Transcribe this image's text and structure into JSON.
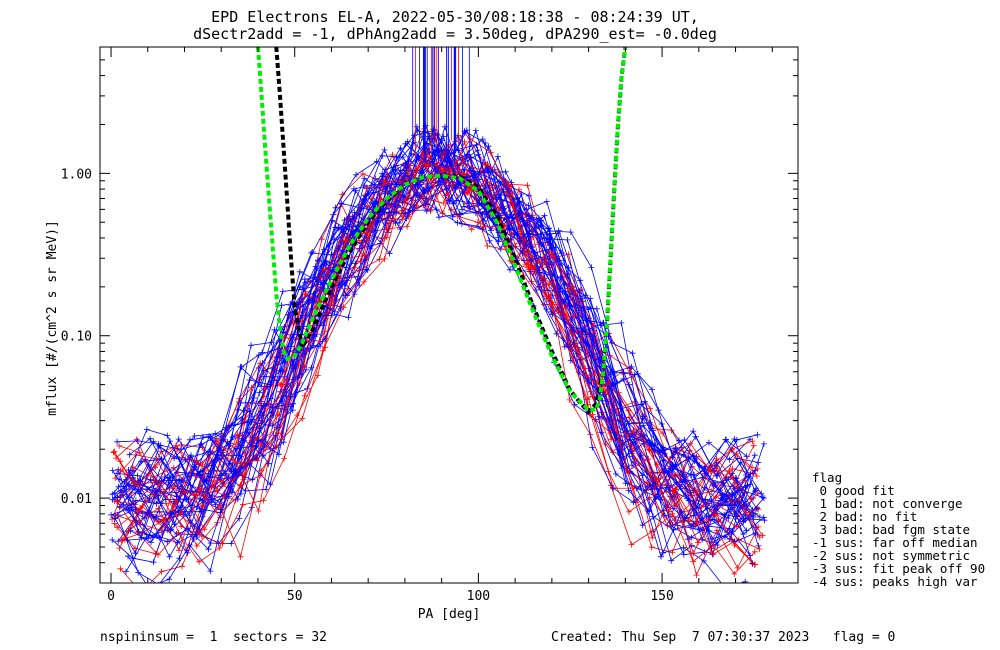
{
  "chart_data": {
    "type": "line",
    "title": "EPD Electrons EL-A, 2022-05-30/08:18:38 - 08:24:39 UT,",
    "subtitle": "dSectr2add = -1, dPhAng2add = 3.50deg, dPA290_est=  -0.0deg",
    "xlabel": "PA [deg]",
    "ylabel": "mflux [#/(cm^2 s sr MeV)]",
    "xlim": [
      -3,
      187
    ],
    "ylim": [
      0.003,
      6.0
    ],
    "yscale": "log",
    "xticks": [
      0,
      50,
      100,
      150
    ],
    "xtick_labels": [
      "0",
      "50",
      "100",
      "150"
    ],
    "yticks": [
      0.01,
      0.1,
      1.0
    ],
    "ytick_labels": [
      "0.01",
      "0.10",
      "1.00"
    ],
    "grid": false,
    "legend_title": "flag",
    "legend_entries": [
      " 0 good fit",
      " 1 bad: not converge",
      " 2 bad: no fit",
      " 3 bad: bad fgm state",
      "-1 sus: far off median",
      "-2 sus: not symmetric",
      "-3 sus: fit peak off 90",
      "-4 sus: peaks high var"
    ],
    "legend_position": "right",
    "series_colors": {
      "blue": "#0000ff",
      "red": "#ff0000",
      "fit_black": "#000000",
      "fit_green": "#00ee00"
    },
    "fit_black": {
      "x": [
        45,
        46,
        47,
        48,
        49,
        50,
        52,
        55,
        60,
        65,
        70,
        75,
        80,
        85,
        90,
        95,
        100,
        105,
        110,
        115,
        120,
        125,
        128,
        130,
        132,
        134,
        135,
        136,
        137,
        138,
        139,
        140
      ],
      "y": [
        6.0,
        3.0,
        1.4,
        0.65,
        0.3,
        0.15,
        0.085,
        0.11,
        0.2,
        0.33,
        0.5,
        0.68,
        0.85,
        0.95,
        0.97,
        0.95,
        0.82,
        0.55,
        0.3,
        0.15,
        0.08,
        0.046,
        0.038,
        0.034,
        0.038,
        0.06,
        0.12,
        0.3,
        0.8,
        2.0,
        4.0,
        6.0
      ]
    },
    "fit_green": {
      "x": [
        40,
        41,
        42,
        43,
        44,
        45,
        46,
        47,
        48,
        50,
        52,
        55,
        60,
        65,
        70,
        75,
        80,
        85,
        90,
        95,
        100,
        105,
        110,
        115,
        120,
        125,
        130,
        132,
        133,
        134,
        135,
        136,
        137,
        138,
        139,
        140
      ],
      "y": [
        6.0,
        3.0,
        1.4,
        0.7,
        0.35,
        0.18,
        0.11,
        0.08,
        0.072,
        0.075,
        0.09,
        0.13,
        0.22,
        0.36,
        0.53,
        0.7,
        0.85,
        0.95,
        0.97,
        0.93,
        0.78,
        0.5,
        0.27,
        0.14,
        0.075,
        0.045,
        0.035,
        0.035,
        0.04,
        0.06,
        0.12,
        0.3,
        0.8,
        2.0,
        4.0,
        6.0
      ]
    }
  },
  "footer": {
    "left": "nspininsum =  1  sectors = 32",
    "right": "Created: Thu Sep  7 07:30:37 2023   flag = 0"
  }
}
